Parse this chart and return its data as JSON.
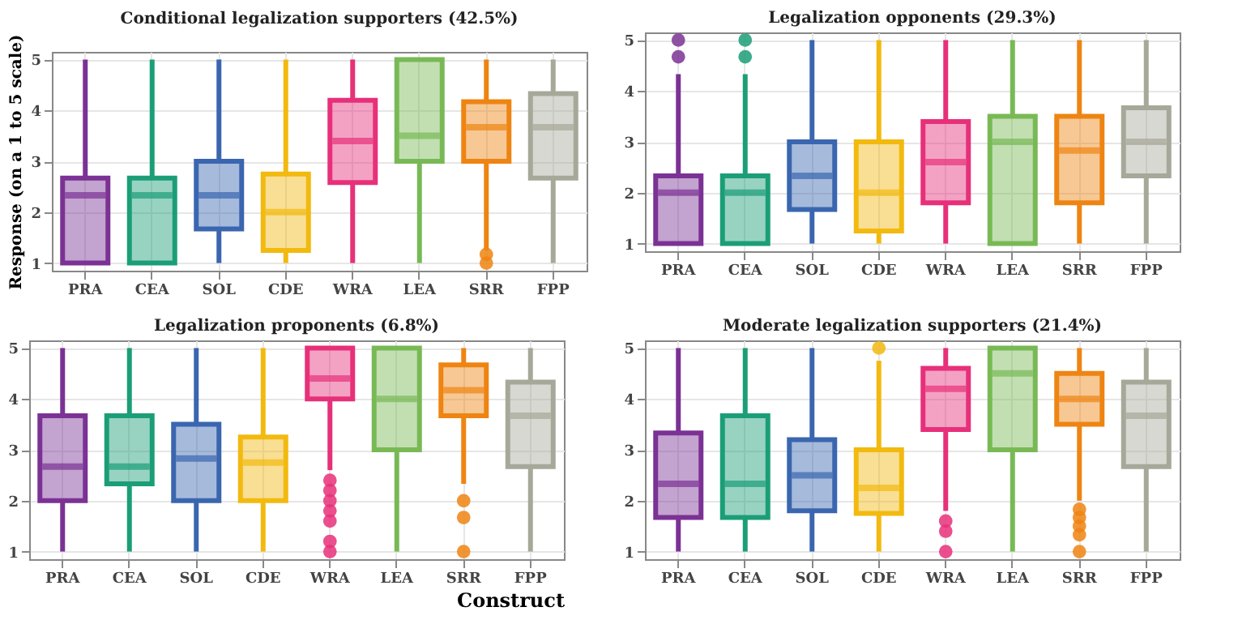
{
  "chart_data": [
    {
      "type": "box",
      "title": "Conditional legalization supporters (42.5%)",
      "ylabel": "Response (on a 1 to 5 scale)",
      "categories": [
        "PRA",
        "CEA",
        "SOL",
        "CDE",
        "WRA",
        "LEA",
        "SRR",
        "FPP"
      ],
      "colors": [
        "#7b3294",
        "#1b9e77",
        "#3a66b0",
        "#f2b90f",
        "#e7307a",
        "#78b955",
        "#ee8412",
        "#a6a899"
      ],
      "ylim": [
        0.85,
        5.15
      ],
      "yticks": [
        1,
        2,
        3,
        4,
        5
      ],
      "grid": true,
      "boxes": [
        {
          "low": 1,
          "q1": 1,
          "median": 2.33,
          "q3": 2.67,
          "high": 5
        },
        {
          "low": 1,
          "q1": 1,
          "median": 2.33,
          "q3": 2.67,
          "high": 5
        },
        {
          "low": 1,
          "q1": 1.67,
          "median": 2.33,
          "q3": 3,
          "high": 5
        },
        {
          "low": 1,
          "q1": 1.25,
          "median": 2,
          "q3": 2.75,
          "high": 5
        },
        {
          "low": 1,
          "q1": 2.58,
          "median": 3.4,
          "q3": 4.2,
          "high": 5
        },
        {
          "low": 1,
          "q1": 3,
          "median": 3.5,
          "q3": 5,
          "high": 5
        },
        {
          "low": 1.25,
          "q1": 3,
          "median": 3.67,
          "q3": 4.17,
          "high": 5,
          "outliers": [
            1,
            1.17
          ]
        },
        {
          "low": 1,
          "q1": 2.67,
          "median": 3.67,
          "q3": 4.33,
          "high": 5
        }
      ]
    },
    {
      "type": "box",
      "title": "Legalization opponents (29.3%)",
      "categories": [
        "PRA",
        "CEA",
        "SOL",
        "CDE",
        "WRA",
        "LEA",
        "SRR",
        "FPP"
      ],
      "colors": [
        "#7b3294",
        "#1b9e77",
        "#3a66b0",
        "#f2b90f",
        "#e7307a",
        "#78b955",
        "#ee8412",
        "#a6a899"
      ],
      "ylim": [
        0.85,
        5.15
      ],
      "yticks": [
        1,
        2,
        3,
        4,
        5
      ],
      "grid": true,
      "boxes": [
        {
          "low": 1,
          "q1": 1,
          "median": 2,
          "q3": 2.33,
          "high": 4.33,
          "outliers": [
            4.67,
            5
          ]
        },
        {
          "low": 1,
          "q1": 1,
          "median": 2,
          "q3": 2.33,
          "high": 4.33,
          "outliers": [
            4.67,
            5
          ]
        },
        {
          "low": 1,
          "q1": 1.67,
          "median": 2.33,
          "q3": 3,
          "high": 5
        },
        {
          "low": 1,
          "q1": 1.25,
          "median": 2,
          "q3": 3,
          "high": 5
        },
        {
          "low": 1,
          "q1": 1.8,
          "median": 2.6,
          "q3": 3.4,
          "high": 5
        },
        {
          "low": 1,
          "q1": 1,
          "median": 3,
          "q3": 3.5,
          "high": 5
        },
        {
          "low": 1,
          "q1": 1.8,
          "median": 2.83,
          "q3": 3.5,
          "high": 5
        },
        {
          "low": 1,
          "q1": 2.33,
          "median": 3,
          "q3": 3.67,
          "high": 5
        }
      ]
    },
    {
      "type": "box",
      "title": "Legalization proponents (6.8%)",
      "xlabel": "Construct",
      "categories": [
        "PRA",
        "CEA",
        "SOL",
        "CDE",
        "WRA",
        "LEA",
        "SRR",
        "FPP"
      ],
      "colors": [
        "#7b3294",
        "#1b9e77",
        "#3a66b0",
        "#f2b90f",
        "#e7307a",
        "#78b955",
        "#ee8412",
        "#a6a899"
      ],
      "ylim": [
        0.85,
        5.15
      ],
      "yticks": [
        1,
        2,
        3,
        4,
        5
      ],
      "grid": true,
      "boxes": [
        {
          "low": 1,
          "q1": 2,
          "median": 2.67,
          "q3": 3.67,
          "high": 5
        },
        {
          "low": 1,
          "q1": 2.33,
          "median": 2.67,
          "q3": 3.67,
          "high": 5
        },
        {
          "low": 1,
          "q1": 2,
          "median": 2.83,
          "q3": 3.5,
          "high": 5
        },
        {
          "low": 1,
          "q1": 2,
          "median": 2.75,
          "q3": 3.25,
          "high": 5
        },
        {
          "low": 2.6,
          "q1": 4,
          "median": 4.4,
          "q3": 5,
          "high": 5,
          "outliers": [
            1,
            1.2,
            1.6,
            1.8,
            2,
            2.2,
            2.4
          ]
        },
        {
          "low": 1,
          "q1": 3,
          "median": 4,
          "q3": 5,
          "high": 5
        },
        {
          "low": 2.33,
          "q1": 3.67,
          "median": 4.17,
          "q3": 4.67,
          "high": 5,
          "outliers": [
            1,
            1.67,
            2
          ]
        },
        {
          "low": 1,
          "q1": 2.67,
          "median": 3.67,
          "q3": 4.33,
          "high": 5
        }
      ]
    },
    {
      "type": "box",
      "title": "Moderate legalization supporters (21.4%)",
      "categories": [
        "PRA",
        "CEA",
        "SOL",
        "CDE",
        "WRA",
        "LEA",
        "SRR",
        "FPP"
      ],
      "colors": [
        "#7b3294",
        "#1b9e77",
        "#3a66b0",
        "#f2b90f",
        "#e7307a",
        "#78b955",
        "#ee8412",
        "#a6a899"
      ],
      "ylim": [
        0.85,
        5.15
      ],
      "yticks": [
        1,
        2,
        3,
        4,
        5
      ],
      "grid": true,
      "boxes": [
        {
          "low": 1,
          "q1": 1.67,
          "median": 2.33,
          "q3": 3.33,
          "high": 5
        },
        {
          "low": 1,
          "q1": 1.67,
          "median": 2.33,
          "q3": 3.67,
          "high": 5
        },
        {
          "low": 1,
          "q1": 1.8,
          "median": 2.5,
          "q3": 3.2,
          "high": 5
        },
        {
          "low": 1,
          "q1": 1.75,
          "median": 2.25,
          "q3": 3,
          "high": 4.75,
          "outliers": [
            5
          ]
        },
        {
          "low": 1.8,
          "q1": 3.4,
          "median": 4.2,
          "q3": 4.6,
          "high": 5,
          "outliers": [
            1,
            1.4,
            1.6
          ]
        },
        {
          "low": 1,
          "q1": 3,
          "median": 4.5,
          "q3": 5,
          "high": 5
        },
        {
          "low": 2,
          "q1": 3.5,
          "median": 4,
          "q3": 4.5,
          "high": 5,
          "outliers": [
            1,
            1.33,
            1.5,
            1.67,
            1.83
          ]
        },
        {
          "low": 1,
          "q1": 2.67,
          "median": 3.67,
          "q3": 4.33,
          "high": 5
        }
      ]
    }
  ]
}
